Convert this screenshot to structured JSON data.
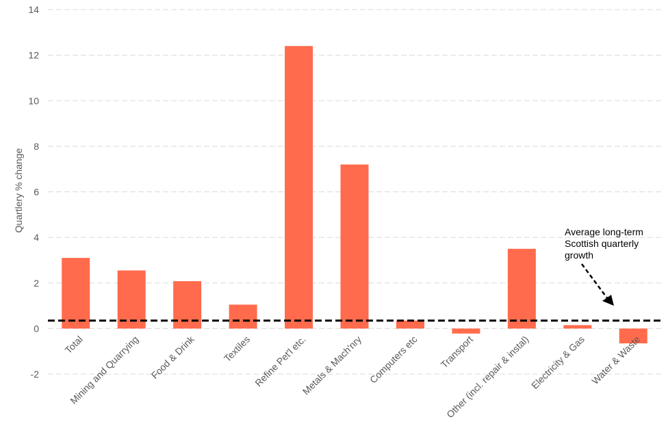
{
  "chart_data": {
    "type": "bar",
    "categories": [
      "Total",
      "Mining and Quarrying",
      "Food & Drink",
      "Textiles",
      "Refine Pet'l etc.",
      "Metals & Mach'nry",
      "Computers etc",
      "Transport",
      "Other (incl. repair & instal)",
      "Electricity & Gas",
      "Water & Waste"
    ],
    "values": [
      3.1,
      2.55,
      2.08,
      1.05,
      12.4,
      7.2,
      0.35,
      -0.22,
      3.5,
      0.15,
      -0.65
    ],
    "ylabel": "Quartlery  % change",
    "ylim": [
      -2,
      14
    ],
    "yticks": [
      -2,
      0,
      2,
      4,
      6,
      8,
      10,
      12,
      14
    ],
    "grid": true,
    "bar_color": "#FF6B4C",
    "reference_line": {
      "value": 0.35,
      "style": "dashed",
      "color": "#000000"
    },
    "annotation": {
      "lines": [
        "Average long-term",
        "Scottish quarterly",
        "growth"
      ]
    }
  }
}
